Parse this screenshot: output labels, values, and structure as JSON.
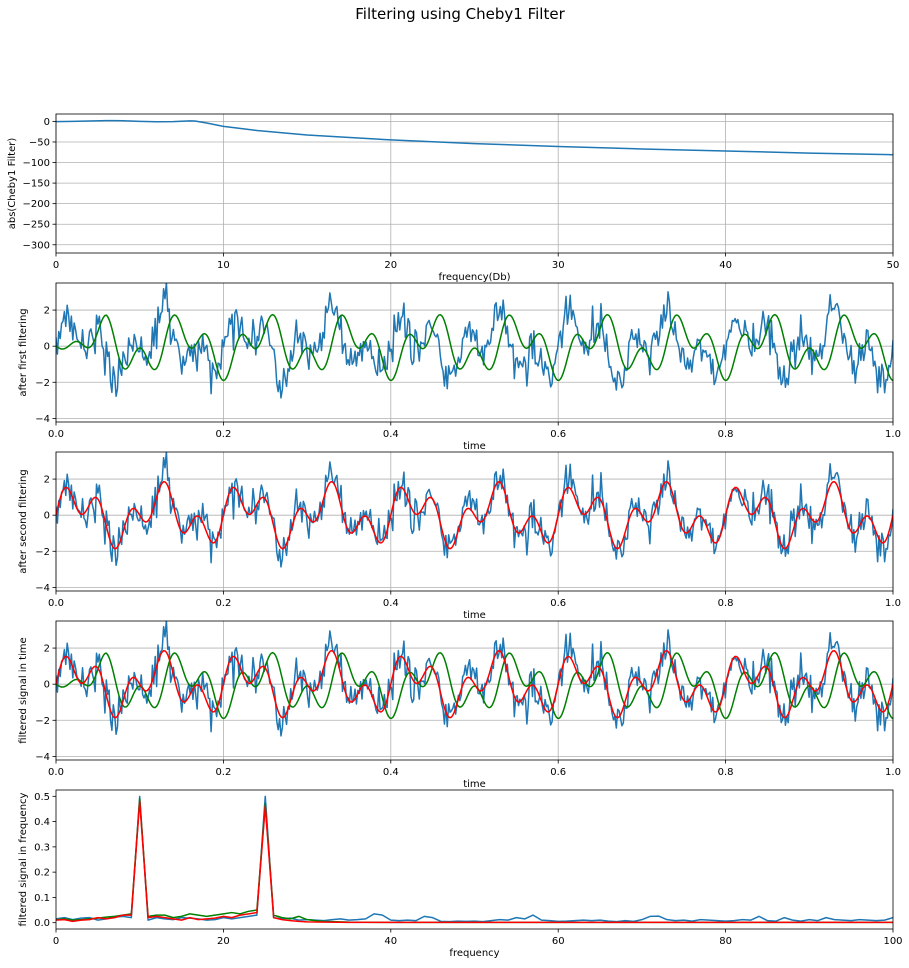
{
  "title": "Filtering using Cheby1 Filter",
  "colors": {
    "blue": "#1f77b4",
    "green": "#008000",
    "red": "#ff0000",
    "grid": "#b0b0b0"
  },
  "chart_data": [
    {
      "type": "line",
      "xlabel": "frequency(Db)",
      "ylabel": "abs(Cheby1 Filter)",
      "xlim": [
        0,
        50
      ],
      "ylim": [
        -320,
        18
      ],
      "xticks": [
        0,
        10,
        20,
        30,
        40,
        50
      ],
      "yticks": [
        0,
        -50,
        -100,
        -150,
        -200,
        -250,
        -300
      ],
      "grid": true,
      "series": [
        {
          "color": "blue",
          "x": [
            0,
            1,
            2,
            3,
            3.5,
            4,
            5,
            6,
            7,
            8,
            8.3,
            9,
            10,
            12,
            15,
            20,
            25,
            30,
            35,
            40,
            45,
            50
          ],
          "y": [
            -0.5,
            0,
            1,
            1.8,
            2,
            1.5,
            0.2,
            -0.8,
            -0.5,
            1.2,
            1,
            -4,
            -12,
            -22,
            -33,
            -45,
            -54,
            -61,
            -67,
            -72,
            -77,
            -81
          ]
        }
      ]
    },
    {
      "type": "line",
      "xlabel": "time",
      "ylabel": "after first filtering",
      "xlim": [
        0,
        1
      ],
      "ylim": [
        -4.2,
        3.5
      ],
      "xticks": [
        0,
        0.2,
        0.4,
        0.6,
        0.8,
        1
      ],
      "xticklabels": [
        "0.0",
        "0.2",
        "0.4",
        "0.6",
        "0.8",
        "1.0"
      ],
      "yticks": [
        -4,
        -2,
        0,
        2
      ],
      "grid": true,
      "series": [
        {
          "color": "blue",
          "signal": "noisy",
          "samples": 600,
          "components": [
            {
              "freq": 10,
              "amp": 1
            },
            {
              "freq": 25,
              "amp": 1
            }
          ],
          "noise_std": 0.55
        },
        {
          "color": "green",
          "signal": "smooth",
          "samples": 600,
          "start": 0,
          "components": [
            {
              "freq": 10,
              "amp": 1,
              "phase": -1.6
            },
            {
              "freq": 25,
              "amp": 0.9,
              "phase": -1.6
            }
          ]
        }
      ]
    },
    {
      "type": "line",
      "xlabel": "time",
      "ylabel": "after second filtering",
      "xlim": [
        0,
        1
      ],
      "ylim": [
        -4.2,
        3.5
      ],
      "xticks": [
        0,
        0.2,
        0.4,
        0.6,
        0.8,
        1
      ],
      "xticklabels": [
        "0.0",
        "0.2",
        "0.4",
        "0.6",
        "0.8",
        "1.0"
      ],
      "yticks": [
        -4,
        -2,
        0,
        2
      ],
      "grid": true,
      "series": [
        {
          "color": "blue",
          "signal": "noisy",
          "samples": 600,
          "components": [
            {
              "freq": 10,
              "amp": 1
            },
            {
              "freq": 25,
              "amp": 1
            }
          ],
          "noise_std": 0.55
        },
        {
          "color": "red",
          "signal": "smooth",
          "samples": 600,
          "components": [
            {
              "freq": 10,
              "amp": 1
            },
            {
              "freq": 25,
              "amp": 0.9
            }
          ]
        }
      ]
    },
    {
      "type": "line",
      "xlabel": "time",
      "ylabel": "filtered signal in time",
      "xlim": [
        0,
        1
      ],
      "ylim": [
        -4.2,
        3.5
      ],
      "xticks": [
        0,
        0.2,
        0.4,
        0.6,
        0.8,
        1
      ],
      "xticklabels": [
        "0.0",
        "0.2",
        "0.4",
        "0.6",
        "0.8",
        "1.0"
      ],
      "yticks": [
        -4,
        -2,
        0,
        2
      ],
      "grid": true,
      "series": [
        {
          "color": "blue",
          "signal": "noisy",
          "samples": 600,
          "components": [
            {
              "freq": 10,
              "amp": 1
            },
            {
              "freq": 25,
              "amp": 1
            }
          ],
          "noise_std": 0.55
        },
        {
          "color": "green",
          "signal": "smooth",
          "samples": 600,
          "start": 0,
          "components": [
            {
              "freq": 10,
              "amp": 1,
              "phase": -1.6
            },
            {
              "freq": 25,
              "amp": 0.9,
              "phase": -1.6
            }
          ]
        },
        {
          "color": "red",
          "signal": "smooth",
          "samples": 600,
          "components": [
            {
              "freq": 10,
              "amp": 1
            },
            {
              "freq": 25,
              "amp": 0.9
            }
          ]
        }
      ]
    },
    {
      "type": "line",
      "xlabel": "frequency",
      "ylabel": "filtered signal in frequency",
      "xlim": [
        0,
        100
      ],
      "ylim": [
        -0.025,
        0.525
      ],
      "xticks": [
        0,
        20,
        40,
        60,
        80,
        100
      ],
      "yticks": [
        0,
        0.1,
        0.2,
        0.3,
        0.4,
        0.5
      ],
      "yticklabels": [
        "0.0",
        "0.1",
        "0.2",
        "0.3",
        "0.4",
        "0.5"
      ],
      "grid": false,
      "series": [
        {
          "color": "blue",
          "x": [
            0,
            1,
            2,
            3,
            4,
            5,
            6,
            7,
            8,
            9,
            10,
            11,
            12,
            13,
            14,
            15,
            16,
            17,
            18,
            19,
            20,
            21,
            22,
            23,
            24,
            25,
            26,
            27,
            28,
            29,
            30,
            31,
            32,
            33,
            34,
            35,
            36,
            37,
            38,
            39,
            40,
            41,
            42,
            43,
            44,
            45,
            46,
            47,
            48,
            49,
            50,
            51,
            52,
            53,
            54,
            55,
            56,
            57,
            58,
            59,
            60,
            61,
            62,
            63,
            64,
            65,
            66,
            67,
            68,
            69,
            70,
            71,
            72,
            73,
            74,
            75,
            76,
            77,
            78,
            79,
            80,
            81,
            82,
            83,
            84,
            85,
            86,
            87,
            88,
            89,
            90,
            91,
            92,
            93,
            94,
            95,
            96,
            97,
            98,
            99,
            100
          ],
          "y": [
            0.015,
            0.02,
            0.012,
            0.018,
            0.02,
            0.01,
            0.015,
            0.022,
            0.025,
            0.02,
            0.5,
            0.01,
            0.02,
            0.015,
            0.012,
            0.02,
            0.018,
            0.015,
            0.01,
            0.012,
            0.02,
            0.015,
            0.02,
            0.025,
            0.03,
            0.5,
            0.02,
            0.015,
            0.018,
            0.01,
            0.012,
            0.01,
            0.008,
            0.012,
            0.015,
            0.01,
            0.012,
            0.015,
            0.035,
            0.03,
            0.01,
            0.008,
            0.01,
            0.008,
            0.025,
            0.02,
            0.005,
            0.004,
            0.006,
            0.005,
            0.006,
            0.004,
            0.008,
            0.012,
            0.01,
            0.02,
            0.015,
            0.03,
            0.01,
            0.008,
            0.005,
            0.006,
            0.008,
            0.01,
            0.008,
            0.01,
            0.006,
            0.004,
            0.008,
            0.005,
            0.012,
            0.025,
            0.026,
            0.012,
            0.008,
            0.01,
            0.006,
            0.012,
            0.01,
            0.008,
            0.006,
            0.008,
            0.012,
            0.01,
            0.025,
            0.008,
            0.006,
            0.02,
            0.01,
            0.006,
            0.012,
            0.008,
            0.02,
            0.012,
            0.01,
            0.008,
            0.012,
            0.01,
            0.008,
            0.01,
            0.02
          ]
        },
        {
          "color": "green",
          "x": [
            0,
            1,
            2,
            3,
            4,
            5,
            6,
            7,
            8,
            9,
            10,
            11,
            12,
            13,
            14,
            15,
            16,
            17,
            18,
            19,
            20,
            21,
            22,
            23,
            24,
            25,
            26,
            27,
            28,
            29,
            30,
            31,
            32,
            33,
            34,
            35,
            40,
            50,
            60,
            70,
            80,
            90,
            100
          ],
          "y": [
            0.012,
            0.015,
            0.01,
            0.012,
            0.015,
            0.018,
            0.022,
            0.025,
            0.03,
            0.035,
            0.49,
            0.025,
            0.03,
            0.03,
            0.02,
            0.025,
            0.035,
            0.03,
            0.025,
            0.03,
            0.035,
            0.04,
            0.035,
            0.045,
            0.05,
            0.47,
            0.03,
            0.02,
            0.015,
            0.025,
            0.012,
            0.008,
            0.005,
            0.004,
            0.003,
            0.002,
            0.001,
            0.001,
            0.001,
            0.001,
            0.001,
            0.001,
            0.001
          ]
        },
        {
          "color": "red",
          "x": [
            0,
            1,
            2,
            3,
            4,
            5,
            6,
            7,
            8,
            9,
            10,
            11,
            12,
            13,
            14,
            15,
            16,
            17,
            18,
            19,
            20,
            21,
            22,
            23,
            24,
            25,
            26,
            27,
            28,
            29,
            30,
            35,
            40,
            50,
            60,
            70,
            80,
            90,
            100
          ],
          "y": [
            0.01,
            0.012,
            0.005,
            0.01,
            0.012,
            0.02,
            0.015,
            0.02,
            0.03,
            0.03,
            0.48,
            0.02,
            0.025,
            0.02,
            0.015,
            0.01,
            0.02,
            0.012,
            0.015,
            0.018,
            0.025,
            0.02,
            0.03,
            0.035,
            0.04,
            0.46,
            0.02,
            0.012,
            0.008,
            0.005,
            0.003,
            0.001,
            0.001,
            0.001,
            0.001,
            0.001,
            0.001,
            0.001,
            0.001
          ]
        }
      ]
    }
  ]
}
